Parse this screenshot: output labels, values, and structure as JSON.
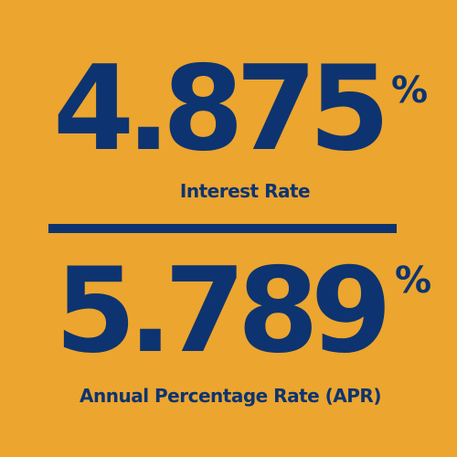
{
  "colors": {
    "background": "#eca52e",
    "text": "#0d3470"
  },
  "interest": {
    "value": "4.875",
    "symbol": "%",
    "label": "Interest Rate"
  },
  "apr": {
    "value": "5.789",
    "symbol": "%",
    "label": "Annual Percentage Rate (APR)"
  }
}
